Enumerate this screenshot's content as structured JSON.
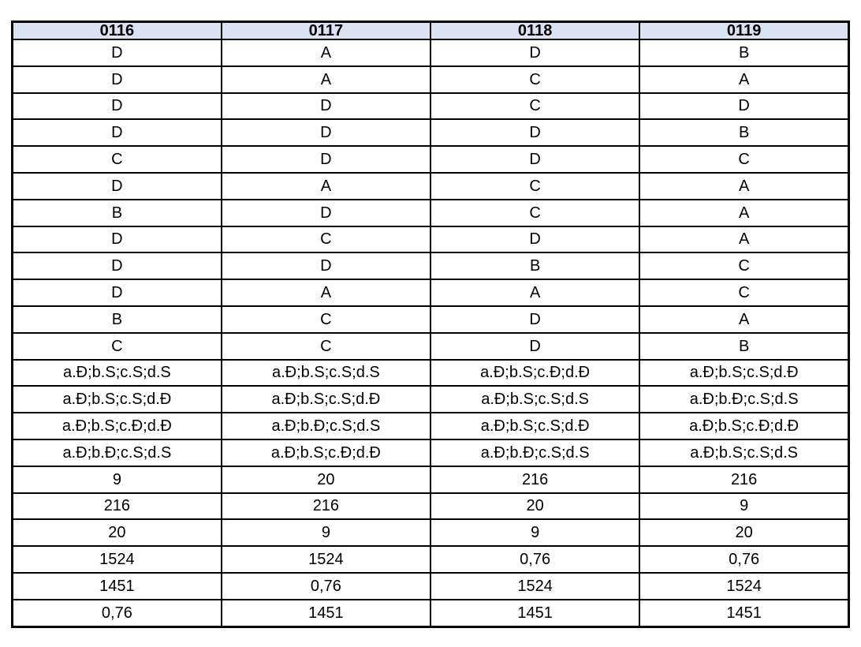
{
  "page": {
    "background": "#ffffff"
  },
  "table": {
    "header_bg": "#dae3f3",
    "border_color": "#000000",
    "text_color": "#000000",
    "columns": [
      "0116",
      "0117",
      "0118",
      "0119"
    ],
    "rows": [
      [
        "D",
        "A",
        "D",
        "B"
      ],
      [
        "D",
        "A",
        "C",
        "A"
      ],
      [
        "D",
        "D",
        "C",
        "D"
      ],
      [
        "D",
        "D",
        "D",
        "B"
      ],
      [
        "C",
        "D",
        "D",
        "C"
      ],
      [
        "D",
        "A",
        "C",
        "A"
      ],
      [
        "B",
        "D",
        "C",
        "A"
      ],
      [
        "D",
        "C",
        "D",
        "A"
      ],
      [
        "D",
        "D",
        "B",
        "C"
      ],
      [
        "D",
        "A",
        "A",
        "C"
      ],
      [
        "B",
        "C",
        "D",
        "A"
      ],
      [
        "C",
        "C",
        "D",
        "B"
      ],
      [
        "a.Đ;b.S;c.S;d.S",
        "a.Đ;b.S;c.S;d.S",
        "a.Đ;b.S;c.Đ;d.Đ",
        "a.Đ;b.S;c.S;d.Đ"
      ],
      [
        "a.Đ;b.S;c.S;d.Đ",
        "a.Đ;b.S;c.S;d.Đ",
        "a.Đ;b.S;c.S;d.S",
        "a.Đ;b.Đ;c.S;d.S"
      ],
      [
        "a.Đ;b.S;c.Đ;d.Đ",
        "a.Đ;b.Đ;c.S;d.S",
        "a.Đ;b.S;c.S;d.Đ",
        "a.Đ;b.S;c.Đ;d.Đ"
      ],
      [
        "a.Đ;b.Đ;c.S;d.S",
        "a.Đ;b.S;c.Đ;d.Đ",
        "a.Đ;b.Đ;c.S;d.S",
        "a.Đ;b.S;c.S;d.S"
      ],
      [
        "9",
        "20",
        "216",
        "216"
      ],
      [
        "216",
        "216",
        "20",
        "9"
      ],
      [
        "20",
        "9",
        "9",
        "20"
      ],
      [
        "1524",
        "1524",
        "0,76",
        "0,76"
      ],
      [
        "1451",
        "0,76",
        "1524",
        "1524"
      ],
      [
        "0,76",
        "1451",
        "1451",
        "1451"
      ]
    ]
  }
}
